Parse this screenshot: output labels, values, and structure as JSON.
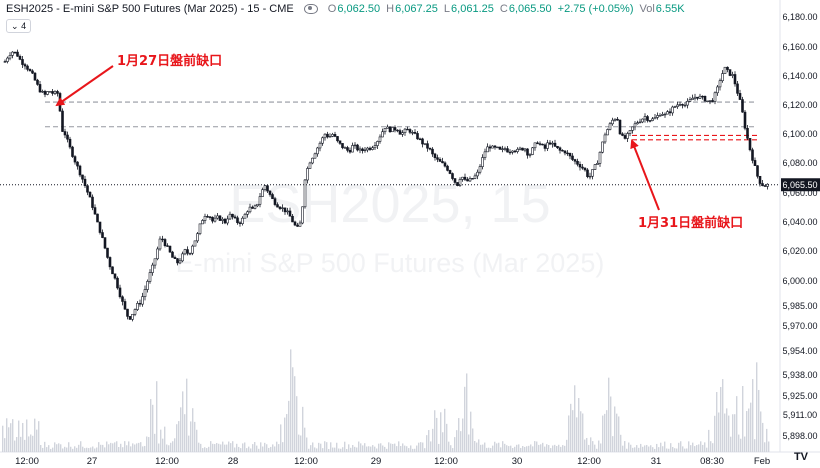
{
  "header": {
    "symbol": "ESH2025 - E-mini S&P 500 Futures (Mar 2025) - 15 - CME",
    "open_label": "O",
    "open": "6,062.50",
    "high_label": "H",
    "high": "6,067.25",
    "low_label": "L",
    "low": "6,061.25",
    "close_label": "C",
    "close": "6,065.50",
    "change": "+2.75 (+0.05%)",
    "vol_label": "Vol",
    "vol": "6.55K",
    "collapse_label": "4"
  },
  "watermark": {
    "big": "ESH2025, 15",
    "small": "E-mini S&P 500 Futures (Mar 2025)"
  },
  "annotations": [
    {
      "text": "1月27日盤前缺口",
      "color": "#e8161b"
    },
    {
      "text": "1月31日盤前缺口",
      "color": "#e8161b"
    }
  ],
  "current_price_label": "6,065.50",
  "logo": "TV",
  "chart_data": {
    "type": "candlestick",
    "title": "ESH2025 - E-mini S&P 500 Futures (Mar 2025) - 15 - CME",
    "x_ticks": [
      "12:00",
      "27",
      "12:00",
      "28",
      "12:00",
      "29",
      "12:00",
      "30",
      "12:00",
      "31",
      "08:30",
      "Feb"
    ],
    "y_ticks": [
      6180,
      6160,
      6140,
      6120,
      6100,
      6080,
      6060,
      6040,
      6020,
      6000,
      5985,
      5970,
      5954,
      5938,
      5925,
      5911,
      5898
    ],
    "y_tick_labels": [
      "6,180.00",
      "6,160.00",
      "6,140.00",
      "6,120.00",
      "6,100.00",
      "6,080.00",
      "6,060.00",
      "6,040.00",
      "6,020.00",
      "6,000.00",
      "5,985.00",
      "5,970.00",
      "5,954.00",
      "5,938.00",
      "5,925.00",
      "5,911.00",
      "5,898.00"
    ],
    "ylim": [
      5890,
      6190
    ],
    "last_price": 6065.5,
    "gap_lines": [
      {
        "price": 6122,
        "style": "dashed",
        "color": "#9598a1",
        "note": "Jan 27 gap upper"
      },
      {
        "price": 6105,
        "style": "dashed",
        "color": "#9598a1",
        "note": "Jan 27 gap lower"
      },
      {
        "price": 6099,
        "style": "dashed",
        "color": "#e8161b",
        "note": "Jan 31 gap upper"
      },
      {
        "price": 6096,
        "style": "dashed",
        "color": "#e8161b",
        "note": "Jan 31 gap lower"
      }
    ],
    "price_path": [
      [
        0,
        6150
      ],
      [
        0.4,
        6155
      ],
      [
        0.8,
        6157
      ],
      [
        1.2,
        6155
      ],
      [
        1.6,
        6150
      ],
      [
        2,
        6148
      ],
      [
        2.4,
        6144
      ],
      [
        2.8,
        6140
      ],
      [
        3.2,
        6134
      ],
      [
        3.6,
        6129
      ],
      [
        4,
        6127
      ],
      [
        4.4,
        6130
      ],
      [
        4.8,
        6128
      ],
      [
        5.4,
        6128
      ],
      [
        5.6,
        6104
      ],
      [
        6,
        6100
      ],
      [
        6.4,
        6092
      ],
      [
        6.8,
        6085
      ],
      [
        7.2,
        6078
      ],
      [
        7.6,
        6072
      ],
      [
        8,
        6065
      ],
      [
        8.4,
        6058
      ],
      [
        8.8,
        6050
      ],
      [
        9.2,
        6040
      ],
      [
        9.6,
        6032
      ],
      [
        10,
        6022
      ],
      [
        10.4,
        6012
      ],
      [
        10.8,
        6005
      ],
      [
        11.2,
        5998
      ],
      [
        11.6,
        5990
      ],
      [
        12,
        5982
      ],
      [
        12.4,
        5975
      ],
      [
        12.8,
        5980
      ],
      [
        13.2,
        5985
      ],
      [
        13.6,
        5988
      ],
      [
        14,
        5995
      ],
      [
        14.4,
        6003
      ],
      [
        14.8,
        6010
      ],
      [
        15.2,
        6020
      ],
      [
        15.6,
        6030
      ],
      [
        16,
        6025
      ],
      [
        16.4,
        6020
      ],
      [
        16.8,
        6015
      ],
      [
        17.2,
        6012
      ],
      [
        17.6,
        6015
      ],
      [
        18,
        6020
      ],
      [
        18.4,
        6018
      ],
      [
        18.8,
        6025
      ],
      [
        19.2,
        6030
      ],
      [
        19.6,
        6040
      ],
      [
        20,
        6045
      ],
      [
        20.4,
        6045
      ],
      [
        20.8,
        6040
      ],
      [
        21.2,
        6043
      ],
      [
        21.6,
        6042
      ],
      [
        22,
        6040
      ],
      [
        22.4,
        6045
      ],
      [
        22.8,
        6043
      ],
      [
        23.2,
        6040
      ],
      [
        23.6,
        6040
      ],
      [
        24,
        6045
      ],
      [
        24.4,
        6050
      ],
      [
        24.8,
        6048
      ],
      [
        25.2,
        6052
      ],
      [
        25.6,
        6060
      ],
      [
        26,
        6065
      ],
      [
        26.4,
        6060
      ],
      [
        26.8,
        6055
      ],
      [
        27.2,
        6052
      ],
      [
        27.6,
        6050
      ],
      [
        28,
        6048
      ],
      [
        28.4,
        6045
      ],
      [
        28.8,
        6040
      ],
      [
        29.2,
        6035
      ],
      [
        29.6,
        6040
      ],
      [
        30,
        6070
      ],
      [
        30.4,
        6080
      ],
      [
        30.8,
        6085
      ],
      [
        31.2,
        6090
      ],
      [
        31.6,
        6095
      ],
      [
        32,
        6100
      ],
      [
        32.4,
        6098
      ],
      [
        32.8,
        6100
      ],
      [
        33.2,
        6095
      ],
      [
        33.6,
        6092
      ],
      [
        34,
        6090
      ],
      [
        34.4,
        6088
      ],
      [
        34.8,
        6092
      ],
      [
        35.2,
        6090
      ],
      [
        35.6,
        6088
      ],
      [
        36,
        6090
      ],
      [
        36.4,
        6090
      ],
      [
        36.8,
        6092
      ],
      [
        37.2,
        6095
      ],
      [
        37.6,
        6100
      ],
      [
        38,
        6105
      ],
      [
        38.4,
        6103
      ],
      [
        38.8,
        6103
      ],
      [
        39.2,
        6104
      ],
      [
        39.6,
        6100
      ],
      [
        40,
        6102
      ],
      [
        40.4,
        6103
      ],
      [
        40.8,
        6100
      ],
      [
        41.2,
        6098
      ],
      [
        41.6,
        6095
      ],
      [
        42,
        6092
      ],
      [
        42.4,
        6090
      ],
      [
        42.8,
        6085
      ],
      [
        43.2,
        6082
      ],
      [
        43.6,
        6080
      ],
      [
        44,
        6078
      ],
      [
        44.4,
        6075
      ],
      [
        44.8,
        6070
      ],
      [
        45.2,
        6065
      ],
      [
        45.6,
        6072
      ],
      [
        46,
        6068
      ],
      [
        46.4,
        6068
      ],
      [
        46.8,
        6070
      ],
      [
        47.2,
        6072
      ],
      [
        47.6,
        6080
      ],
      [
        48,
        6088
      ],
      [
        48.4,
        6092
      ],
      [
        48.8,
        6090
      ],
      [
        49.2,
        6090
      ],
      [
        49.6,
        6088
      ],
      [
        50,
        6090
      ],
      [
        50.4,
        6088
      ],
      [
        50.8,
        6090
      ],
      [
        51.2,
        6088
      ],
      [
        51.6,
        6090
      ],
      [
        52,
        6090
      ],
      [
        52.4,
        6085
      ],
      [
        52.8,
        6090
      ],
      [
        53.2,
        6095
      ],
      [
        53.6,
        6092
      ],
      [
        54,
        6090
      ],
      [
        54.4,
        6095
      ],
      [
        54.8,
        6092
      ],
      [
        55.2,
        6090
      ],
      [
        55.6,
        6088
      ],
      [
        56,
        6088
      ],
      [
        56.4,
        6085
      ],
      [
        56.8,
        6082
      ],
      [
        57.2,
        6080
      ],
      [
        57.6,
        6078
      ],
      [
        58,
        6075
      ],
      [
        58.4,
        6070
      ],
      [
        58.8,
        6075
      ],
      [
        59.2,
        6080
      ],
      [
        59.6,
        6090
      ],
      [
        60,
        6100
      ],
      [
        60.4,
        6105
      ],
      [
        60.8,
        6110
      ],
      [
        61.2,
        6112
      ],
      [
        61.6,
        6098
      ],
      [
        62,
        6097
      ],
      [
        62.4,
        6100
      ],
      [
        62.8,
        6105
      ],
      [
        63.2,
        6108
      ],
      [
        63.6,
        6110
      ],
      [
        64,
        6112
      ],
      [
        64.4,
        6110
      ],
      [
        64.8,
        6110
      ],
      [
        65.2,
        6112
      ],
      [
        65.6,
        6115
      ],
      [
        66,
        6113
      ],
      [
        66.4,
        6115
      ],
      [
        66.8,
        6118
      ],
      [
        67.2,
        6120
      ],
      [
        67.6,
        6122
      ],
      [
        68,
        6120
      ],
      [
        68.4,
        6122
      ],
      [
        68.8,
        6125
      ],
      [
        69.2,
        6126
      ],
      [
        69.6,
        6125
      ],
      [
        70,
        6124
      ],
      [
        70.4,
        6122
      ],
      [
        70.8,
        6124
      ],
      [
        71.2,
        6130
      ],
      [
        71.6,
        6140
      ],
      [
        72,
        6145
      ],
      [
        72.4,
        6142
      ],
      [
        72.8,
        6140
      ],
      [
        73.2,
        6130
      ],
      [
        73.6,
        6120
      ],
      [
        74,
        6105
      ],
      [
        74.4,
        6092
      ],
      [
        74.8,
        6082
      ],
      [
        75.2,
        6072
      ],
      [
        75.6,
        6066
      ],
      [
        76,
        6065
      ],
      [
        76.4,
        6065.5
      ]
    ],
    "volume_profile": "spikes near each session open (≈27 12:00, 28 12:00, 29 12:00, 30 12:00, 31 09:30)"
  }
}
